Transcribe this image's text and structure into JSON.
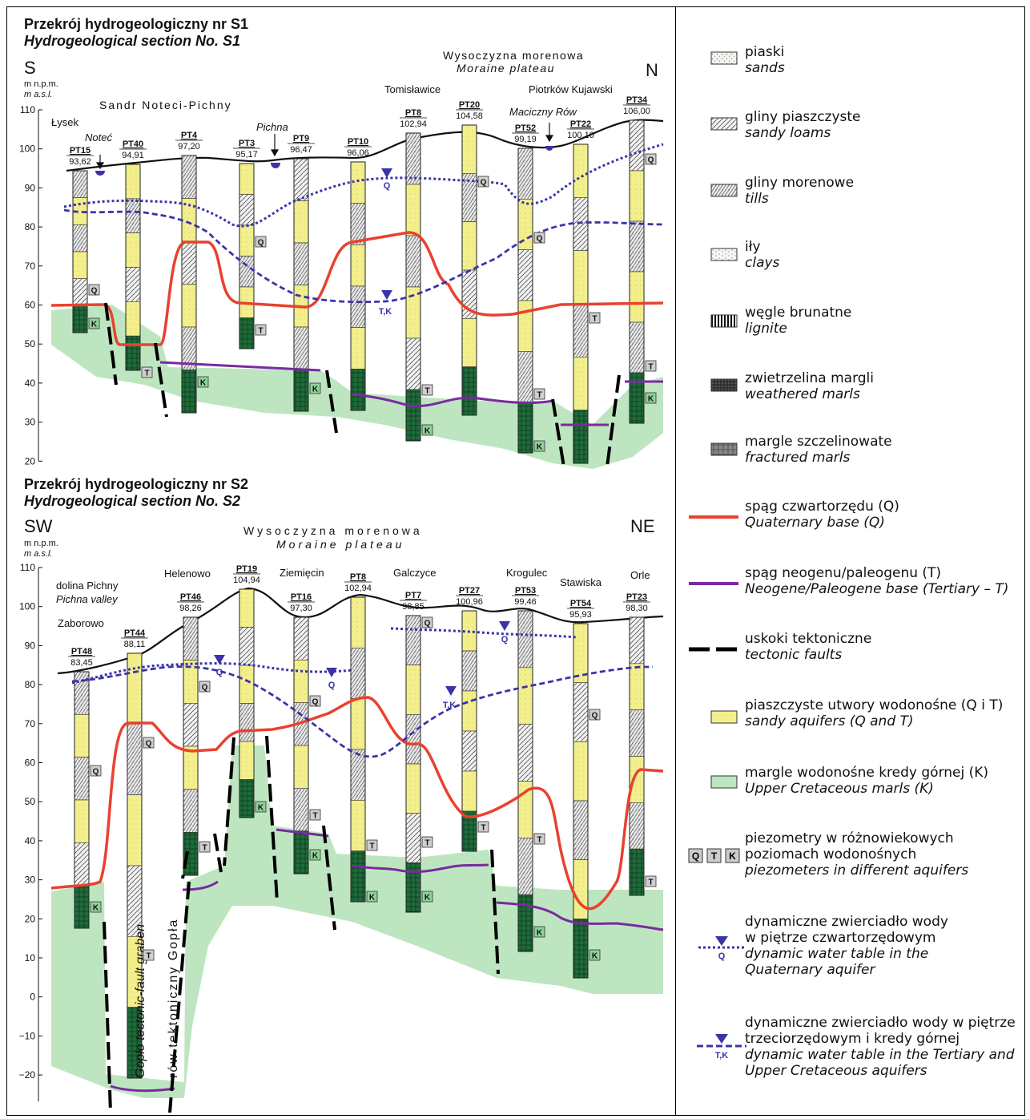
{
  "s1": {
    "title_pl": "Przekrój hydrogeologiczny nr S1",
    "title_en": "Hydrogeological section No. S1",
    "dir_left": "S",
    "dir_right": "N",
    "unit_pl": "m n.p.m.",
    "unit_en": "m a.s.l.",
    "yticks": [
      "110",
      "100",
      "90",
      "80",
      "70",
      "60",
      "50",
      "40",
      "30",
      "20"
    ],
    "region1": "Sandr Noteci-Pichny",
    "region2_pl": "Wysoczyzna morenowa",
    "region2_en": "Moraine plateau",
    "places": [
      "Łysek",
      "Noteć",
      "Pichna",
      "Tomisławice",
      "Piotrków Kujawski",
      "Maciczny Rów"
    ],
    "wells": [
      {
        "name": "PT15",
        "elev": "93,62"
      },
      {
        "name": "PT40",
        "elev": "94,91"
      },
      {
        "name": "PT4",
        "elev": "97,20"
      },
      {
        "name": "PT3",
        "elev": "95,17"
      },
      {
        "name": "PT9",
        "elev": "96,47"
      },
      {
        "name": "PT10",
        "elev": "96,06"
      },
      {
        "name": "PT8",
        "elev": "102,94"
      },
      {
        "name": "PT20",
        "elev": "104,58"
      },
      {
        "name": "PT52",
        "elev": "99,19"
      },
      {
        "name": "PT22",
        "elev": "100,10"
      },
      {
        "name": "PT34",
        "elev": "106,00"
      }
    ]
  },
  "s2": {
    "title_pl": "Przekrój hydrogeologiczny nr S2",
    "title_en": "Hydrogeological section No. S2",
    "dir_left": "SW",
    "dir_right": "NE",
    "unit_pl": "m n.p.m.",
    "unit_en": "m a.s.l.",
    "yticks": [
      "110",
      "100",
      "90",
      "80",
      "70",
      "60",
      "50",
      "40",
      "30",
      "20",
      "10",
      "0",
      "−10",
      "−20"
    ],
    "region_pl": "Wysoczyzna morenowa",
    "region_en": "Moraine plateau",
    "valley_pl": "dolina Pichny",
    "valley_en": "Pichna valley",
    "places": [
      "Zaborowo",
      "Helenowo",
      "Ziemięcin",
      "Galczyce",
      "Krogulec",
      "Stawiska",
      "Orle"
    ],
    "graben_en": "Gopło tectonic-fault graben",
    "graben_pl": "rów tektoniczny Gopła",
    "wells": [
      {
        "name": "PT48",
        "elev": "83,45"
      },
      {
        "name": "PT44",
        "elev": "88,11"
      },
      {
        "name": "PT46",
        "elev": "98,26"
      },
      {
        "name": "PT19",
        "elev": "104,94"
      },
      {
        "name": "PT16",
        "elev": "97,30"
      },
      {
        "name": "PT8",
        "elev": "102,94"
      },
      {
        "name": "PT7",
        "elev": "98,85"
      },
      {
        "name": "PT27",
        "elev": "100,96"
      },
      {
        "name": "PT53",
        "elev": "99,46"
      },
      {
        "name": "PT54",
        "elev": "95,93"
      },
      {
        "name": "PT23",
        "elev": "98,30"
      }
    ]
  },
  "labels": {
    "Q": "Q",
    "T": "T",
    "K": "K",
    "TK": "T,K"
  },
  "legend": [
    {
      "pl": "piaski",
      "en": "sands",
      "icon": "sands-pattern"
    },
    {
      "pl": "gliny piaszczyste",
      "en": "sandy loams",
      "icon": "sandy-loam-pattern"
    },
    {
      "pl": "gliny morenowe",
      "en": "tills",
      "icon": "till-pattern"
    },
    {
      "pl": "iły",
      "en": "clays",
      "icon": "clay-pattern"
    },
    {
      "pl": "węgle brunatne",
      "en": "lignite",
      "icon": "lignite-pattern"
    },
    {
      "pl": "zwietrzelina margli",
      "en": "weathered marls",
      "icon": "weathered-marl-pattern"
    },
    {
      "pl": "margle szczelinowate",
      "en": "fractured marls",
      "icon": "fractured-marl-pattern"
    },
    {
      "pl": "spąg czwartorzędu (Q)",
      "en": "Quaternary base (Q)",
      "icon": "red-line"
    },
    {
      "pl": "spąg neogenu/paleogenu (T)",
      "en": "Neogene/Paleogene base (Tertiary – T)",
      "icon": "purple-line"
    },
    {
      "pl": "uskoki tektoniczne",
      "en": "tectonic faults",
      "icon": "dashed-black-line"
    },
    {
      "pl": "piaszczyste utwory wodonośne (Q i T)",
      "en": "sandy aquifers (Q and T)",
      "icon": "yellow-box"
    },
    {
      "pl": "margle wodonośne kredy górnej (K)",
      "en": "Upper Cretaceous marls (K)",
      "icon": "green-box"
    },
    {
      "pl": "piezometry w różnowiekowych poziomach wodonośnych",
      "en": "piezometers in different aquifers",
      "icon": "piezometer-boxes"
    },
    {
      "pl": "dynamiczne zwierciadło wody w piętrze czwartorzędowym",
      "en": "dynamic water table in the Quaternary aquifer",
      "icon": "dotted-blue-line"
    },
    {
      "pl": "dynamiczne zwierciadło wody w piętrze trzeciorzędowym i kredy górnej",
      "en": "dynamic water table in the Tertiary and Upper Cretaceous aquifers",
      "icon": "dashed-blue-line"
    }
  ],
  "colors": {
    "sand": "#f2ef8c",
    "marl": "#bde6c0",
    "quat_base": "#e8422f",
    "tert_base": "#7a2aa0",
    "water": "#3a34a8",
    "fault": "#000000"
  }
}
